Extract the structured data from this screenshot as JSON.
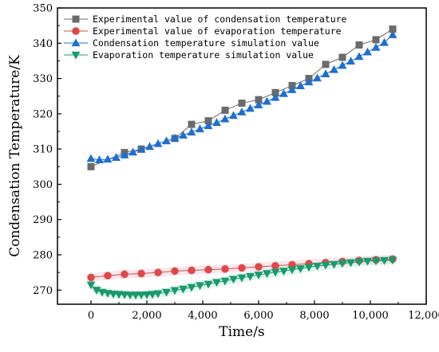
{
  "chart_data": {
    "type": "line",
    "title": "",
    "xlabel": "Time/s",
    "ylabel": "Condensation Temperature/K",
    "xlim": [
      -1200,
      12000
    ],
    "ylim": [
      266,
      350
    ],
    "x_ticks": [
      0,
      2000,
      4000,
      6000,
      8000,
      10000,
      12000
    ],
    "x_tick_labels": [
      "0",
      "2,000",
      "4,000",
      "6,000",
      "8,000",
      "10,000",
      "12,000"
    ],
    "y_ticks": [
      270,
      280,
      290,
      300,
      310,
      320,
      330,
      340,
      350
    ],
    "y_tick_labels": [
      "270",
      "280",
      "290",
      "300",
      "310",
      "320",
      "330",
      "340",
      "350"
    ],
    "grid": false,
    "legend_position": "top-left",
    "series": [
      {
        "name": "Experimental value of condensation temperature",
        "color": "#6b6b6b",
        "marker": "square",
        "x": [
          0,
          1200,
          1800,
          3000,
          3600,
          4200,
          4800,
          5400,
          6000,
          6600,
          7200,
          7800,
          8400,
          9000,
          9600,
          10200,
          10800
        ],
        "y": [
          305,
          309,
          310,
          313,
          317,
          318,
          321,
          323,
          324,
          326,
          328,
          330,
          334,
          336,
          339.5,
          341,
          344
        ]
      },
      {
        "name": "Experimental value of evaporation temperature",
        "color": "#e04848",
        "marker": "circle",
        "x": [
          0,
          600,
          1200,
          1800,
          2400,
          3000,
          3600,
          4200,
          4800,
          5400,
          6000,
          6600,
          7200,
          7800,
          8400,
          9000,
          9600,
          10200,
          10800
        ],
        "y": [
          273.6,
          274.1,
          274.5,
          274.7,
          275,
          275.4,
          275.6,
          275.8,
          276,
          276.3,
          276.6,
          276.9,
          277.2,
          277.5,
          277.8,
          278.1,
          278.4,
          278.6,
          278.8
        ]
      },
      {
        "name": "Condensation temperature simulation value",
        "color": "#1f6fd0",
        "marker": "triangle-up",
        "x": [
          0,
          300,
          600,
          900,
          1200,
          1500,
          1800,
          2100,
          2400,
          2700,
          3000,
          3300,
          3600,
          3900,
          4200,
          4500,
          4800,
          5100,
          5400,
          5700,
          6000,
          6300,
          6600,
          6900,
          7200,
          7500,
          7800,
          8100,
          8400,
          8700,
          9000,
          9300,
          9600,
          9900,
          10200,
          10500,
          10800
        ],
        "y": [
          307.3,
          306.9,
          307.1,
          307.6,
          308.3,
          309.1,
          309.9,
          310.7,
          311.5,
          312.3,
          313.1,
          313.9,
          314.8,
          315.7,
          316.6,
          317.5,
          318.5,
          319.5,
          320.5,
          321.5,
          322.5,
          323.5,
          324.6,
          325.7,
          326.8,
          327.9,
          329,
          330.1,
          331.3,
          332.5,
          333.7,
          334.9,
          336.2,
          337.5,
          338.8,
          340.2,
          342.4
        ]
      },
      {
        "name": "Evaporation temperature simulation value",
        "color": "#1a9a6a",
        "marker": "triangle-down",
        "x": [
          0,
          200,
          400,
          600,
          800,
          1000,
          1200,
          1400,
          1600,
          1800,
          2000,
          2200,
          2400,
          2700,
          3000,
          3300,
          3600,
          3900,
          4200,
          4500,
          4800,
          5100,
          5400,
          5700,
          6000,
          6300,
          6600,
          6900,
          7200,
          7500,
          7800,
          8100,
          8400,
          8700,
          9000,
          9300,
          9600,
          9900,
          10200,
          10500,
          10800
        ],
        "y": [
          271.5,
          270,
          269.4,
          269.1,
          268.9,
          268.8,
          268.7,
          268.65,
          268.6,
          268.65,
          268.7,
          268.8,
          269,
          269.4,
          269.9,
          270.3,
          270.8,
          271.3,
          271.7,
          272.2,
          272.6,
          273.1,
          273.5,
          273.9,
          274.3,
          274.7,
          275.1,
          275.4,
          275.8,
          276.1,
          276.5,
          276.8,
          277.1,
          277.3,
          277.6,
          277.8,
          278,
          278.2,
          278.3,
          278.4,
          278.5
        ]
      }
    ]
  }
}
